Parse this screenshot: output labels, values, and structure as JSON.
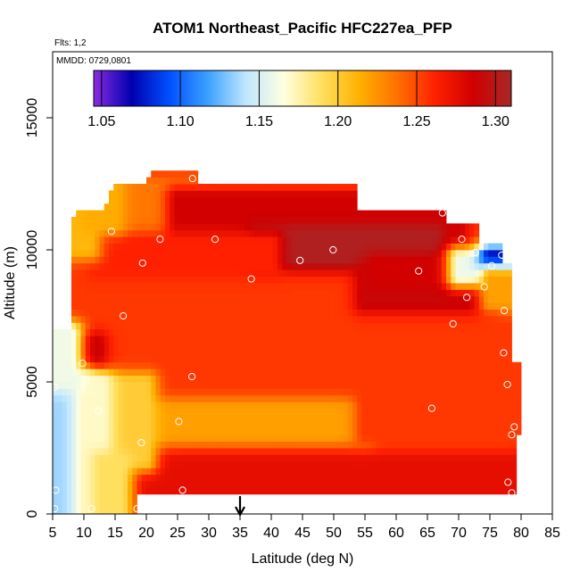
{
  "chart_data": {
    "type": "heatmap",
    "title": "ATOM1 Northeast_Pacific HFC227ea_PFP",
    "notes": {
      "flights": "Flts: 1,2",
      "dates": "MMDD: 0729,0801"
    },
    "xlabel": "Latitude (deg N)",
    "ylabel": "Altitude (m)",
    "xlim": [
      5,
      85
    ],
    "ylim": [
      0,
      17500
    ],
    "x_ticks": [
      "5",
      "10",
      "15",
      "20",
      "25",
      "30",
      "35",
      "40",
      "45",
      "50",
      "55",
      "60",
      "65",
      "70",
      "75",
      "80",
      "85"
    ],
    "x_tick_values": [
      5,
      10,
      15,
      20,
      25,
      30,
      35,
      40,
      45,
      50,
      55,
      60,
      65,
      70,
      75,
      80,
      85
    ],
    "y_ticks": [
      "0",
      "5000",
      "10000",
      "15000"
    ],
    "y_tick_values": [
      0,
      5000,
      10000,
      15000
    ],
    "colorbar": {
      "min": 1.045,
      "max": 1.31,
      "ticks": [
        "1.05",
        "1.10",
        "1.15",
        "1.20",
        "1.25",
        "1.30"
      ],
      "tick_values": [
        1.05,
        1.1,
        1.15,
        1.2,
        1.25,
        1.3
      ],
      "colors": [
        "#8a2be2",
        "#0000b0",
        "#0050ff",
        "#3aa0ff",
        "#bfe6ff",
        "#ffffe0",
        "#ffe060",
        "#ffb000",
        "#ff7000",
        "#ff2000",
        "#d00000",
        "#a82828"
      ]
    },
    "arrow_latitude": 35,
    "region": {
      "polygon": [
        [
          5,
          0
        ],
        [
          5,
          6900
        ],
        [
          8,
          6900
        ],
        [
          8,
          10500
        ],
        [
          8.5,
          11600
        ],
        [
          13,
          11600
        ],
        [
          15,
          12400
        ],
        [
          20,
          12400
        ],
        [
          20.5,
          12900
        ],
        [
          28,
          12900
        ],
        [
          28,
          12400
        ],
        [
          54,
          12400
        ],
        [
          54,
          11500
        ],
        [
          68,
          11500
        ],
        [
          68,
          11000
        ],
        [
          73,
          11000
        ],
        [
          73,
          10300
        ],
        [
          77,
          10300
        ],
        [
          77,
          9600
        ],
        [
          78.5,
          9600
        ],
        [
          78.5,
          5700
        ],
        [
          80,
          5700
        ],
        [
          80,
          3000
        ],
        [
          79,
          3000
        ],
        [
          79,
          700
        ],
        [
          18.5,
          700
        ],
        [
          18.5,
          0
        ]
      ]
    },
    "field": {
      "background_value": 1.255,
      "bands": [
        {
          "x": [
            8,
            58
          ],
          "y": [
            10800,
            12400
          ],
          "value": 1.235
        },
        {
          "x": [
            25,
            70
          ],
          "y": [
            10300,
            12000
          ],
          "value": 1.285
        },
        {
          "x": [
            38,
            66
          ],
          "y": [
            9600,
            10600
          ],
          "value": 1.305
        },
        {
          "x": [
            12,
            40
          ],
          "y": [
            9300,
            10300
          ],
          "value": 1.262
        },
        {
          "x": [
            55,
            75
          ],
          "y": [
            8000,
            9200
          ],
          "value": 1.29
        },
        {
          "x": [
            57,
            70
          ],
          "y": [
            8900,
            9500
          ],
          "value": 1.285
        },
        {
          "x": [
            70,
            78
          ],
          "y": [
            9000,
            9700
          ],
          "value": 1.16
        },
        {
          "x": [
            75,
            78
          ],
          "y": [
            9300,
            9800
          ],
          "value": 1.07
        },
        {
          "x": [
            75,
            78.5
          ],
          "y": [
            8000,
            9000
          ],
          "value": 1.22
        },
        {
          "x": [
            8,
            12
          ],
          "y": [
            5400,
            6500
          ],
          "value": 1.29
        },
        {
          "x": [
            20,
            79
          ],
          "y": [
            600,
            2000
          ],
          "value": 1.275
        },
        {
          "x": [
            20,
            55
          ],
          "y": [
            3000,
            4000
          ],
          "value": 1.22
        },
        {
          "x": [
            55,
            79
          ],
          "y": [
            3000,
            4500
          ],
          "value": 1.255
        },
        {
          "x": [
            12,
            20
          ],
          "y": [
            2000,
            5000
          ],
          "value": 1.2
        },
        {
          "x": [
            5,
            10
          ],
          "y": [
            0,
            5000
          ],
          "value": 1.135
        },
        {
          "x": [
            10,
            13
          ],
          "y": [
            0,
            5000
          ],
          "value": 1.17
        },
        {
          "x": [
            13,
            16
          ],
          "y": [
            0,
            2000
          ],
          "value": 1.19
        },
        {
          "x": [
            5,
            8
          ],
          "y": [
            5000,
            6900
          ],
          "value": 1.16
        },
        {
          "x": [
            8,
            11
          ],
          "y": [
            10000,
            11600
          ],
          "value": 1.21
        },
        {
          "x": [
            11,
            15
          ],
          "y": [
            11000,
            12400
          ],
          "value": 1.215
        }
      ]
    },
    "samples": [
      {
        "lat": 5.3,
        "alt": 200
      },
      {
        "lat": 5.5,
        "alt": 900
      },
      {
        "lat": 5.3,
        "alt": 4800
      },
      {
        "lat": 11.2,
        "alt": 200
      },
      {
        "lat": 12.3,
        "alt": 3900
      },
      {
        "lat": 9.8,
        "alt": 5700
      },
      {
        "lat": 18.5,
        "alt": 200
      },
      {
        "lat": 25.8,
        "alt": 900
      },
      {
        "lat": 19.2,
        "alt": 2700
      },
      {
        "lat": 25.2,
        "alt": 3500
      },
      {
        "lat": 27.3,
        "alt": 5200
      },
      {
        "lat": 16.3,
        "alt": 7500
      },
      {
        "lat": 19.4,
        "alt": 9500
      },
      {
        "lat": 14.4,
        "alt": 10700
      },
      {
        "lat": 22.2,
        "alt": 10400
      },
      {
        "lat": 31.0,
        "alt": 10400
      },
      {
        "lat": 27.4,
        "alt": 12700
      },
      {
        "lat": 36.8,
        "alt": 8900
      },
      {
        "lat": 44.6,
        "alt": 9600
      },
      {
        "lat": 49.9,
        "alt": 10000
      },
      {
        "lat": 63.6,
        "alt": 9200
      },
      {
        "lat": 67.4,
        "alt": 11400
      },
      {
        "lat": 70.5,
        "alt": 10400
      },
      {
        "lat": 72.7,
        "alt": 9900
      },
      {
        "lat": 75.3,
        "alt": 9400
      },
      {
        "lat": 76.9,
        "alt": 9800
      },
      {
        "lat": 71.3,
        "alt": 8200
      },
      {
        "lat": 74.1,
        "alt": 8600
      },
      {
        "lat": 77.3,
        "alt": 7700
      },
      {
        "lat": 69.1,
        "alt": 7200
      },
      {
        "lat": 77.2,
        "alt": 6100
      },
      {
        "lat": 77.8,
        "alt": 4900
      },
      {
        "lat": 65.7,
        "alt": 4000
      },
      {
        "lat": 78.9,
        "alt": 3300
      },
      {
        "lat": 78.5,
        "alt": 3000
      },
      {
        "lat": 77.9,
        "alt": 1200
      },
      {
        "lat": 78.5,
        "alt": 800
      }
    ]
  }
}
